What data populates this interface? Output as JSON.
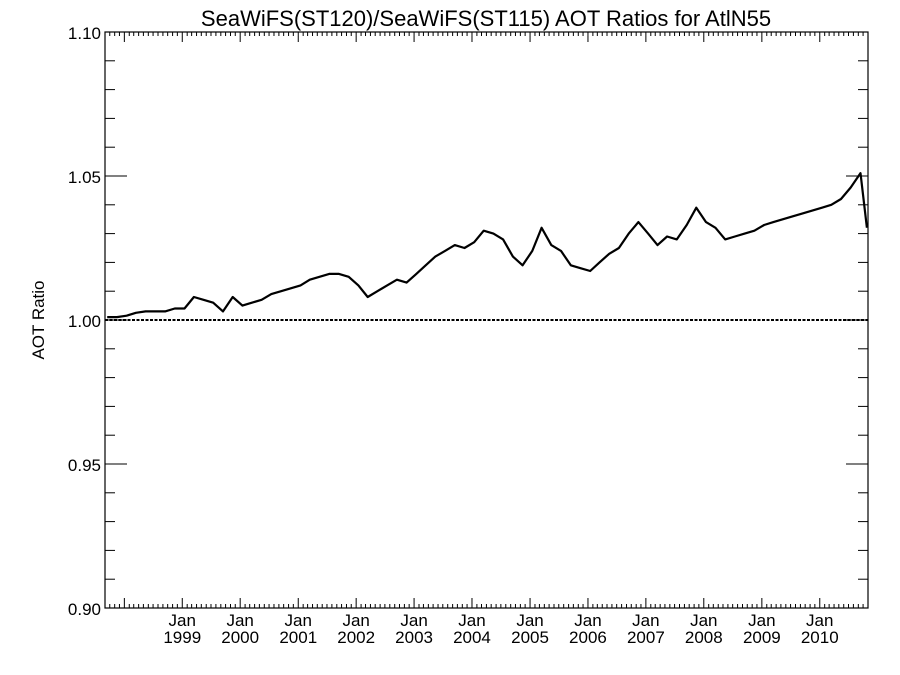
{
  "chart_data": {
    "type": "line",
    "title": "SeaWiFS(ST120)/SeaWiFS(ST115)  AOT Ratios for AtlN55",
    "xlabel": "",
    "ylabel": "AOT Ratio",
    "ylim": [
      0.9,
      1.1
    ],
    "xlim": [
      "1997-09-01",
      "2010-11-01"
    ],
    "yticks": [
      "0.90",
      "0.95",
      "1.00",
      "1.05",
      "1.10"
    ],
    "xticks": [
      {
        "month": "Jan",
        "year": "1999",
        "date": "1999-01-01"
      },
      {
        "month": "Jan",
        "year": "2000",
        "date": "2000-01-01"
      },
      {
        "month": "Jan",
        "year": "2001",
        "date": "2001-01-01"
      },
      {
        "month": "Jan",
        "year": "2002",
        "date": "2002-01-01"
      },
      {
        "month": "Jan",
        "year": "2003",
        "date": "2003-01-01"
      },
      {
        "month": "Jan",
        "year": "2004",
        "date": "2004-01-01"
      },
      {
        "month": "Jan",
        "year": "2005",
        "date": "2005-01-01"
      },
      {
        "month": "Jan",
        "year": "2006",
        "date": "2006-01-01"
      },
      {
        "month": "Jan",
        "year": "2007",
        "date": "2007-01-01"
      },
      {
        "month": "Jan",
        "year": "2008",
        "date": "2008-01-01"
      },
      {
        "month": "Jan",
        "year": "2009",
        "date": "2009-01-01"
      },
      {
        "month": "Jan",
        "year": "2010",
        "date": "2010-01-01"
      }
    ],
    "reference_line": 1.0,
    "grid": false,
    "series": [
      {
        "x": [
          "1997-09-15",
          "1997-11-15",
          "1998-01-15",
          "1998-03-15",
          "1998-05-15",
          "1998-09-15",
          "1998-11-15",
          "1999-01-15",
          "1999-03-15",
          "1999-05-15",
          "1999-07-15",
          "1999-09-15",
          "1999-11-15",
          "2000-01-15",
          "2000-03-15",
          "2000-05-15",
          "2000-07-15",
          "2000-09-15",
          "2000-11-15",
          "2001-01-15",
          "2001-03-15",
          "2001-05-15",
          "2001-07-15",
          "2001-09-15",
          "2001-11-15",
          "2002-01-15",
          "2002-03-15",
          "2002-05-15",
          "2002-07-15",
          "2002-09-15",
          "2002-11-15",
          "2003-01-15",
          "2003-03-15",
          "2003-05-15",
          "2003-07-15",
          "2003-09-15",
          "2003-11-15",
          "2004-01-15",
          "2004-03-15",
          "2004-05-15",
          "2004-07-15",
          "2004-09-15",
          "2004-11-15",
          "2005-01-15",
          "2005-03-15",
          "2005-05-15",
          "2005-07-15",
          "2005-09-15",
          "2005-11-15",
          "2006-01-15",
          "2006-03-15",
          "2006-05-15",
          "2006-07-15",
          "2006-09-15",
          "2006-11-15",
          "2007-01-15",
          "2007-03-15",
          "2007-05-15",
          "2007-07-15",
          "2007-09-15",
          "2007-11-15",
          "2008-01-15",
          "2008-03-15",
          "2008-05-15",
          "2008-07-15",
          "2008-09-15",
          "2008-11-15",
          "2009-01-15",
          "2009-03-15",
          "2009-05-15",
          "2009-07-15",
          "2009-09-15",
          "2009-11-15",
          "2010-01-15",
          "2010-03-15",
          "2010-05-15",
          "2010-07-15",
          "2010-09-15",
          "2010-10-25"
        ],
        "y": [
          1.001,
          1.001,
          1.0015,
          1.0025,
          1.003,
          1.003,
          1.004,
          1.004,
          1.008,
          1.007,
          1.006,
          1.003,
          1.008,
          1.005,
          1.006,
          1.007,
          1.009,
          1.01,
          1.011,
          1.012,
          1.014,
          1.015,
          1.016,
          1.016,
          1.015,
          1.012,
          1.008,
          1.01,
          1.012,
          1.014,
          1.013,
          1.016,
          1.019,
          1.022,
          1.024,
          1.026,
          1.025,
          1.027,
          1.031,
          1.03,
          1.028,
          1.022,
          1.019,
          1.024,
          1.032,
          1.026,
          1.024,
          1.019,
          1.018,
          1.017,
          1.02,
          1.023,
          1.025,
          1.03,
          1.034,
          1.03,
          1.026,
          1.029,
          1.028,
          1.033,
          1.039,
          1.034,
          1.032,
          1.028,
          1.029,
          1.03,
          1.031,
          1.033,
          1.034,
          1.035,
          1.036,
          1.037,
          1.038,
          1.039,
          1.04,
          1.042,
          1.046,
          1.051,
          1.032
        ]
      }
    ]
  }
}
